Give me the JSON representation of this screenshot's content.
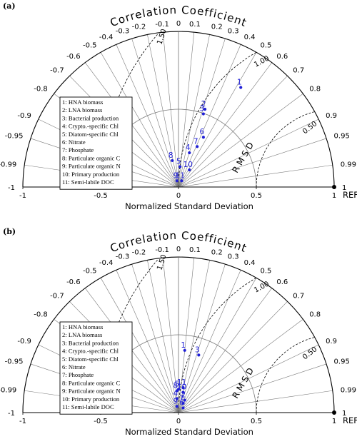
{
  "chart_data": [
    {
      "type": "scatter",
      "panel_label": "(a)",
      "title": "Correlation Coefficient",
      "xlabel": "Normalized Standard Deviation",
      "ref_label": "REF",
      "rmsd_label": "R M S D",
      "x_ticks": [
        "-1",
        "-0.5",
        "0",
        "0.5",
        "1"
      ],
      "correlation_ticks": [
        {
          "r": 0,
          "label": "0"
        },
        {
          "r": 0.1,
          "label": "0.1"
        },
        {
          "r": 0.2,
          "label": "0.2"
        },
        {
          "r": 0.3,
          "label": "0.3"
        },
        {
          "r": 0.4,
          "label": "0.4"
        },
        {
          "r": 0.5,
          "label": "0.5"
        },
        {
          "r": 0.6,
          "label": "0.6"
        },
        {
          "r": 0.7,
          "label": "0.7"
        },
        {
          "r": 0.8,
          "label": "0.8"
        },
        {
          "r": 0.9,
          "label": "0.9"
        },
        {
          "r": 0.95,
          "label": "0.95"
        },
        {
          "r": 0.99,
          "label": "0.99"
        },
        {
          "r": 1,
          "label": "1"
        },
        {
          "r": -0.1,
          "label": "-0.1"
        },
        {
          "r": -0.2,
          "label": "-0.2"
        },
        {
          "r": -0.3,
          "label": "-0.3"
        },
        {
          "r": -0.4,
          "label": "-0.4"
        },
        {
          "r": -0.5,
          "label": "-0.5"
        },
        {
          "r": -0.6,
          "label": "-0.6"
        },
        {
          "r": -0.7,
          "label": "-0.7"
        },
        {
          "r": -0.8,
          "label": "-0.8"
        },
        {
          "r": -0.9,
          "label": "-0.9"
        },
        {
          "r": -0.95,
          "label": "-0.95"
        },
        {
          "r": -0.99,
          "label": "-0.99"
        },
        {
          "r": -1,
          "label": "-1"
        }
      ],
      "rmsd_contours": [
        {
          "value": 0.5,
          "label": "0.50"
        },
        {
          "value": 1.0,
          "label": "1.00"
        },
        {
          "value": 1.5,
          "label": "1.50"
        }
      ],
      "std_arcs": [
        0.5,
        1.0
      ],
      "legend": [
        "1: HNA biomass",
        "2: LNA biomass",
        "3: Bacterial production",
        "4: Crypto.-specific Chl",
        "5: Diatom-specific Chl",
        "6: Nitrate",
        "7: Phosphate",
        "8: Particulate organic C",
        "9: Particulate organic N",
        "10: Primary production",
        "11: Semi-labile DOC"
      ],
      "points": [
        {
          "label": "1",
          "x": 0.4,
          "y": 0.64
        },
        {
          "label": "2",
          "x": 0.17,
          "y": 0.5
        },
        {
          "label": "3",
          "x": 0.16,
          "y": 0.47
        },
        {
          "label": "4",
          "x": 0.07,
          "y": 0.22
        },
        {
          "label": "5",
          "x": 0.01,
          "y": 0.13
        },
        {
          "label": "6",
          "x": 0.16,
          "y": 0.32
        },
        {
          "label": "7",
          "x": 0.12,
          "y": 0.26
        },
        {
          "label": "8",
          "x": -0.04,
          "y": 0.17
        },
        {
          "label": "9",
          "x": -0.01,
          "y": 0.04
        },
        {
          "label": "10",
          "x": 0.07,
          "y": 0.11
        },
        {
          "label": "11",
          "x": 0.02,
          "y": 0.04
        }
      ]
    },
    {
      "type": "scatter",
      "panel_label": "(b)",
      "title": "Correlation Coefficient",
      "xlabel": "Normalized Standard Deviation",
      "ref_label": "REF",
      "rmsd_label": "R M S D",
      "x_ticks": [
        "-1",
        "-0.5",
        "0",
        "0.5",
        "1"
      ],
      "correlation_ticks": [
        {
          "r": 0,
          "label": "0"
        },
        {
          "r": 0.1,
          "label": "0.1"
        },
        {
          "r": 0.2,
          "label": "0.2"
        },
        {
          "r": 0.3,
          "label": "0.3"
        },
        {
          "r": 0.4,
          "label": "0.4"
        },
        {
          "r": 0.5,
          "label": "0.5"
        },
        {
          "r": 0.6,
          "label": "0.6"
        },
        {
          "r": 0.7,
          "label": "0.7"
        },
        {
          "r": 0.8,
          "label": "0.8"
        },
        {
          "r": 0.9,
          "label": "0.9"
        },
        {
          "r": 0.95,
          "label": "0.95"
        },
        {
          "r": 0.99,
          "label": "0.99"
        },
        {
          "r": 1,
          "label": "1"
        },
        {
          "r": -0.1,
          "label": "-0.1"
        },
        {
          "r": -0.2,
          "label": "-0.2"
        },
        {
          "r": -0.3,
          "label": "-0.3"
        },
        {
          "r": -0.4,
          "label": "-0.4"
        },
        {
          "r": -0.5,
          "label": "-0.5"
        },
        {
          "r": -0.6,
          "label": "-0.6"
        },
        {
          "r": -0.7,
          "label": "-0.7"
        },
        {
          "r": -0.8,
          "label": "-0.8"
        },
        {
          "r": -0.9,
          "label": "-0.9"
        },
        {
          "r": -0.95,
          "label": "-0.95"
        },
        {
          "r": -0.99,
          "label": "-0.99"
        },
        {
          "r": -1,
          "label": "-1"
        }
      ],
      "rmsd_contours": [
        {
          "value": 0.5,
          "label": "0.50"
        },
        {
          "value": 1.0,
          "label": "1.00"
        },
        {
          "value": 1.5,
          "label": "1.50"
        }
      ],
      "std_arcs": [
        0.5,
        1.0
      ],
      "legend": [
        "1: HNA biomass",
        "2: LNA biomass",
        "3: Bacterial production",
        "4: Crypto.-specific Chl",
        "5: Diatom-specific Chl",
        "6: Nitrate",
        "7: Phosphate",
        "8: Particulate organic C",
        "9: Particulate organic N",
        "10: Primary production",
        "11: Semi-labile DOC"
      ],
      "points": [
        {
          "label": "1",
          "x": 0.04,
          "y": 0.4
        },
        {
          "label": "2",
          "x": 0.04,
          "y": 0.08
        },
        {
          "label": "3",
          "x": 0.13,
          "y": 0.37
        },
        {
          "label": "4",
          "x": -0.01,
          "y": 0.09
        },
        {
          "label": "5",
          "x": 0.0,
          "y": 0.15
        },
        {
          "label": "6",
          "x": 0.03,
          "y": 0.03
        },
        {
          "label": "7",
          "x": 0.03,
          "y": 0.06
        },
        {
          "label": "8",
          "x": -0.01,
          "y": 0.14
        },
        {
          "label": "9",
          "x": -0.01,
          "y": 0.04
        },
        {
          "label": "10",
          "x": 0.03,
          "y": 0.13
        },
        {
          "label": "11",
          "x": 0.03,
          "y": 0.16
        }
      ]
    }
  ],
  "colors": {
    "points": "#1f1fd6",
    "grid": "#7a7a7a",
    "axis": "#000000",
    "rmsd": "#000000"
  }
}
